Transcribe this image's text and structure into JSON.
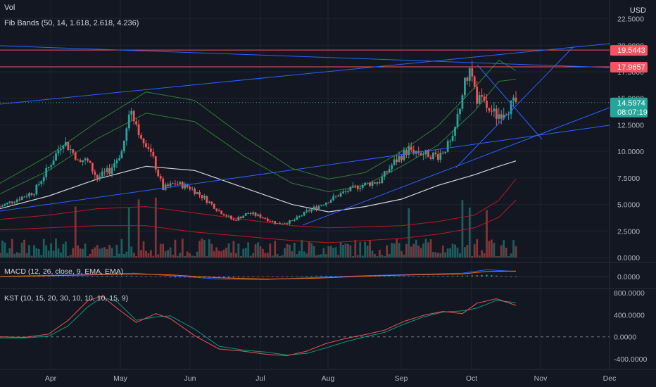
{
  "indicators": {
    "vol_label": "Vol",
    "fib_label": "Fib Bands (50, 14, 1.618, 2.618, 4.236)",
    "macd_label": "MACD (12, 26, close, 9, EMA, EMA)",
    "kst_label": "KST (10, 15, 20, 30, 10, 10, 10, 15, 9)"
  },
  "currency": "USD",
  "price_tags": {
    "res1": "19.5443",
    "res2": "17.9657",
    "last": "14.5974",
    "countdown": "08:07:19"
  },
  "colors": {
    "background": "#131722",
    "grid": "#1f2330",
    "up": "#26a69a",
    "down": "#ef5350",
    "mid_band": "#d1d4dc",
    "upper_band": "#2e7d32",
    "lower_band": "#b71c1c",
    "trendline": "#2962ff",
    "hline": "#f7525f",
    "macd": "#2962ff",
    "signal": "#ff6d00",
    "kst": "#ef5350",
    "kst_signal": "#089981"
  },
  "chart_data": [
    {
      "type": "candlestick",
      "name": "price",
      "y_ticks": [
        "22.5000",
        "20.0000",
        "17.5000",
        "15.0000",
        "12.5000",
        "10.0000",
        "7.5000",
        "5.0000",
        "2.5000",
        "0.0000"
      ],
      "y_tick_values": [
        22.5,
        20,
        17.5,
        15,
        12.5,
        10,
        7.5,
        5,
        2.5,
        0
      ],
      "x_ticks": [
        "Apr",
        "May",
        "Jun",
        "Jul",
        "Aug",
        "Sep",
        "Oct",
        "Nov",
        "Dec"
      ],
      "ylim": [
        0,
        23.6
      ],
      "hlines": [
        19.5443,
        17.9657
      ],
      "last_price": 14.5974,
      "close_path": [
        {
          "t": 0,
          "c": 4.8
        },
        {
          "t": 8,
          "c": 5.6
        },
        {
          "t": 14,
          "c": 6.2
        },
        {
          "t": 20,
          "c": 8.5
        },
        {
          "t": 26,
          "c": 11.0
        },
        {
          "t": 31,
          "c": 9.6
        },
        {
          "t": 36,
          "c": 9.0
        },
        {
          "t": 40,
          "c": 7.5
        },
        {
          "t": 45,
          "c": 8.2
        },
        {
          "t": 50,
          "c": 10.0
        },
        {
          "t": 54,
          "c": 14.0
        },
        {
          "t": 57,
          "c": 12.0
        },
        {
          "t": 61,
          "c": 10.5
        },
        {
          "t": 64,
          "c": 8.5
        },
        {
          "t": 67,
          "c": 6.5
        },
        {
          "t": 72,
          "c": 7.0
        },
        {
          "t": 78,
          "c": 6.6
        },
        {
          "t": 84,
          "c": 5.6
        },
        {
          "t": 90,
          "c": 4.4
        },
        {
          "t": 96,
          "c": 3.5
        },
        {
          "t": 102,
          "c": 4.2
        },
        {
          "t": 108,
          "c": 3.8
        },
        {
          "t": 114,
          "c": 3.2
        },
        {
          "t": 120,
          "c": 3.4
        },
        {
          "t": 126,
          "c": 4.3
        },
        {
          "t": 132,
          "c": 5.0
        },
        {
          "t": 140,
          "c": 6.0
        },
        {
          "t": 148,
          "c": 6.8
        },
        {
          "t": 156,
          "c": 7.2
        },
        {
          "t": 162,
          "c": 9.0
        },
        {
          "t": 168,
          "c": 10.2
        },
        {
          "t": 174,
          "c": 9.8
        },
        {
          "t": 180,
          "c": 9.6
        },
        {
          "t": 186,
          "c": 11.0
        },
        {
          "t": 190,
          "c": 15.5
        },
        {
          "t": 193,
          "c": 17.8
        },
        {
          "t": 196,
          "c": 15.0
        },
        {
          "t": 200,
          "c": 14.2
        },
        {
          "t": 204,
          "c": 13.4
        },
        {
          "t": 208,
          "c": 14.0
        },
        {
          "t": 212,
          "c": 14.6
        }
      ],
      "mid_band": [
        [
          0,
          4.6
        ],
        [
          20,
          5.8
        ],
        [
          40,
          7.4
        ],
        [
          60,
          8.6
        ],
        [
          80,
          8.2
        ],
        [
          100,
          6.6
        ],
        [
          120,
          5.0
        ],
        [
          135,
          4.3
        ],
        [
          150,
          4.8
        ],
        [
          165,
          5.5
        ],
        [
          180,
          6.8
        ],
        [
          195,
          7.8
        ],
        [
          205,
          8.6
        ],
        [
          212,
          9.1
        ]
      ],
      "upper_band1": [
        [
          0,
          6.0
        ],
        [
          20,
          8.2
        ],
        [
          40,
          11.2
        ],
        [
          60,
          13.6
        ],
        [
          80,
          12.8
        ],
        [
          100,
          9.6
        ],
        [
          120,
          7.0
        ],
        [
          135,
          6.2
        ],
        [
          150,
          6.8
        ],
        [
          165,
          8.6
        ],
        [
          180,
          10.6
        ],
        [
          195,
          13.8
        ],
        [
          205,
          16.6
        ],
        [
          212,
          16.8
        ]
      ],
      "upper_band2": [
        [
          0,
          7.0
        ],
        [
          20,
          9.6
        ],
        [
          40,
          12.8
        ],
        [
          60,
          15.6
        ],
        [
          80,
          14.8
        ],
        [
          100,
          11.4
        ],
        [
          120,
          8.4
        ],
        [
          135,
          7.4
        ],
        [
          150,
          8.0
        ],
        [
          165,
          10.0
        ],
        [
          180,
          12.4
        ],
        [
          195,
          16.0
        ],
        [
          205,
          18.6
        ],
        [
          212,
          17.6
        ]
      ],
      "lower_band1": [
        [
          0,
          3.6
        ],
        [
          20,
          4.0
        ],
        [
          40,
          4.6
        ],
        [
          60,
          4.8
        ],
        [
          80,
          4.2
        ],
        [
          100,
          3.6
        ],
        [
          120,
          3.0
        ],
        [
          135,
          2.8
        ],
        [
          150,
          2.9
        ],
        [
          165,
          3.0
        ],
        [
          180,
          3.4
        ],
        [
          195,
          4.0
        ],
        [
          205,
          5.4
        ],
        [
          212,
          7.4
        ]
      ],
      "lower_band2": [
        [
          0,
          2.6
        ],
        [
          20,
          2.8
        ],
        [
          40,
          3.0
        ],
        [
          60,
          3.0
        ],
        [
          80,
          2.4
        ],
        [
          100,
          2.0
        ],
        [
          120,
          1.6
        ],
        [
          135,
          1.4
        ],
        [
          150,
          1.6
        ],
        [
          165,
          1.8
        ],
        [
          180,
          2.2
        ],
        [
          195,
          2.8
        ],
        [
          205,
          3.8
        ],
        [
          212,
          5.4
        ]
      ]
    },
    {
      "type": "bar",
      "name": "volume",
      "ticks": [
        "0.0000"
      ]
    },
    {
      "type": "line",
      "name": "macd",
      "y_ticks": [
        "0.0000"
      ],
      "series": [
        {
          "name": "MACD",
          "values": [
            [
              0,
              0.05
            ],
            [
              30,
              0.4
            ],
            [
              55,
              0.8
            ],
            [
              70,
              0.2
            ],
            [
              90,
              -0.6
            ],
            [
              110,
              -0.7
            ],
            [
              130,
              -0.2
            ],
            [
              150,
              0.2
            ],
            [
              170,
              0.5
            ],
            [
              190,
              0.8
            ],
            [
              200,
              1.6
            ],
            [
              212,
              1.2
            ]
          ]
        },
        {
          "name": "Signal",
          "values": [
            [
              0,
              0.0
            ],
            [
              30,
              0.3
            ],
            [
              55,
              0.6
            ],
            [
              70,
              0.4
            ],
            [
              90,
              -0.3
            ],
            [
              110,
              -0.6
            ],
            [
              130,
              -0.4
            ],
            [
              150,
              0.1
            ],
            [
              170,
              0.4
            ],
            [
              190,
              0.6
            ],
            [
              200,
              1.2
            ],
            [
              212,
              1.3
            ]
          ]
        }
      ]
    },
    {
      "type": "line",
      "name": "kst",
      "y_ticks": [
        "800.0000",
        "400.0000",
        "0.0000",
        "-400.0000"
      ],
      "y_tick_values": [
        800,
        400,
        0,
        -400
      ],
      "ylim": [
        -450,
        850
      ],
      "series": [
        {
          "name": "KST",
          "values": [
            [
              0,
              0
            ],
            [
              10,
              -10
            ],
            [
              20,
              50
            ],
            [
              28,
              300
            ],
            [
              36,
              650
            ],
            [
              42,
              740
            ],
            [
              48,
              520
            ],
            [
              56,
              260
            ],
            [
              64,
              420
            ],
            [
              70,
              330
            ],
            [
              80,
              20
            ],
            [
              90,
              -220
            ],
            [
              100,
              -260
            ],
            [
              110,
              -320
            ],
            [
              118,
              -340
            ],
            [
              126,
              -260
            ],
            [
              134,
              -120
            ],
            [
              142,
              -30
            ],
            [
              150,
              40
            ],
            [
              158,
              120
            ],
            [
              166,
              280
            ],
            [
              174,
              390
            ],
            [
              182,
              460
            ],
            [
              190,
              420
            ],
            [
              196,
              610
            ],
            [
              204,
              690
            ],
            [
              212,
              570
            ]
          ]
        },
        {
          "name": "Signal",
          "values": [
            [
              0,
              -20
            ],
            [
              10,
              -20
            ],
            [
              20,
              10
            ],
            [
              28,
              200
            ],
            [
              36,
              540
            ],
            [
              42,
              720
            ],
            [
              48,
              640
            ],
            [
              56,
              300
            ],
            [
              64,
              360
            ],
            [
              70,
              380
            ],
            [
              80,
              140
            ],
            [
              90,
              -170
            ],
            [
              100,
              -240
            ],
            [
              110,
              -280
            ],
            [
              118,
              -330
            ],
            [
              126,
              -300
            ],
            [
              134,
              -200
            ],
            [
              142,
              -90
            ],
            [
              150,
              0
            ],
            [
              158,
              80
            ],
            [
              166,
              230
            ],
            [
              174,
              360
            ],
            [
              182,
              450
            ],
            [
              190,
              470
            ],
            [
              196,
              520
            ],
            [
              204,
              660
            ],
            [
              212,
              620
            ]
          ]
        }
      ]
    }
  ]
}
